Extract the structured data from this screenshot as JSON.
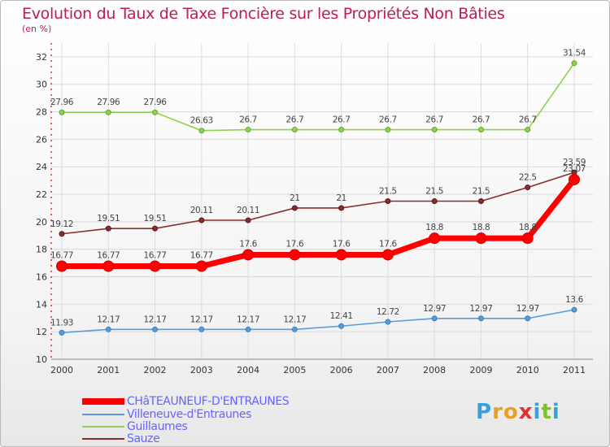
{
  "chart_data": {
    "type": "line",
    "title": "Evolution du Taux de Taxe Foncière sur les Propriétés Non Bâties",
    "subtitle": "(en %)",
    "x": [
      "2000",
      "2001",
      "2002",
      "2003",
      "2004",
      "2005",
      "2006",
      "2007",
      "2008",
      "2009",
      "2010",
      "2011"
    ],
    "ylim": [
      10,
      33
    ],
    "yticks": [
      10,
      12,
      14,
      16,
      18,
      20,
      22,
      24,
      26,
      28,
      30,
      32
    ],
    "grid": true,
    "legend_position": "bottom-left",
    "series": [
      {
        "name": "CHâTEAUNEUF-D'ENTRAUNES",
        "color": "#ff0000",
        "values": [
          16.77,
          16.77,
          16.77,
          16.77,
          17.6,
          17.6,
          17.6,
          17.6,
          18.8,
          18.8,
          18.8,
          23.07
        ],
        "labels": [
          "16.77",
          "16.77",
          "16.77",
          "16.77",
          "17.6",
          "17.6",
          "17.6",
          "17.6",
          "18.8",
          "18.8",
          "18.8",
          "23.07"
        ]
      },
      {
        "name": "Villeneuve-d'Entraunes",
        "color": "#5b9bd5",
        "values": [
          11.93,
          12.17,
          12.17,
          12.17,
          12.17,
          12.17,
          12.41,
          12.72,
          12.97,
          12.97,
          12.97,
          13.6
        ],
        "labels": [
          "11.93",
          "12.17",
          "12.17",
          "12.17",
          "12.17",
          "12.17",
          "12.41",
          "12.72",
          "12.97",
          "12.97",
          "12.97",
          "13.6"
        ]
      },
      {
        "name": "Guillaumes",
        "color": "#8fd14f",
        "values": [
          27.96,
          27.96,
          27.96,
          26.63,
          26.7,
          26.7,
          26.7,
          26.7,
          26.7,
          26.7,
          26.7,
          31.54
        ],
        "labels": [
          "27.96",
          "27.96",
          "27.96",
          "26.63",
          "26.7",
          "26.7",
          "26.7",
          "26.7",
          "26.7",
          "26.7",
          "26.7",
          "31.54"
        ]
      },
      {
        "name": "Sauze",
        "color": "#8b2c2c",
        "values": [
          19.12,
          19.51,
          19.51,
          20.11,
          20.11,
          21,
          21,
          21.5,
          21.5,
          21.5,
          22.5,
          23.59
        ],
        "labels": [
          "19.12",
          "19.51",
          "19.51",
          "20.11",
          "20.11",
          "21",
          "21",
          "21.5",
          "21.5",
          "21.5",
          "22.5",
          "23.59"
        ]
      }
    ]
  },
  "legend": {
    "items": [
      {
        "label": "CHâTEAUNEUF-D'ENTRAUNES",
        "color": "#ff0000"
      },
      {
        "label": "Villeneuve-d'Entraunes",
        "color": "#5b9bd5"
      },
      {
        "label": "Guillaumes",
        "color": "#8fd14f"
      },
      {
        "label": "Sauze",
        "color": "#8b2c2c"
      }
    ],
    "text_color": "#6464ff"
  },
  "logo": {
    "text": "Proxiti",
    "letters": [
      "P",
      "r",
      "o",
      "x",
      "i",
      "t",
      "i"
    ],
    "colors": [
      "#3aa0d8",
      "#e8a020",
      "#e8a020",
      "#e03030",
      "#3aa0d8",
      "#80c030",
      "#3aa0d8"
    ]
  }
}
